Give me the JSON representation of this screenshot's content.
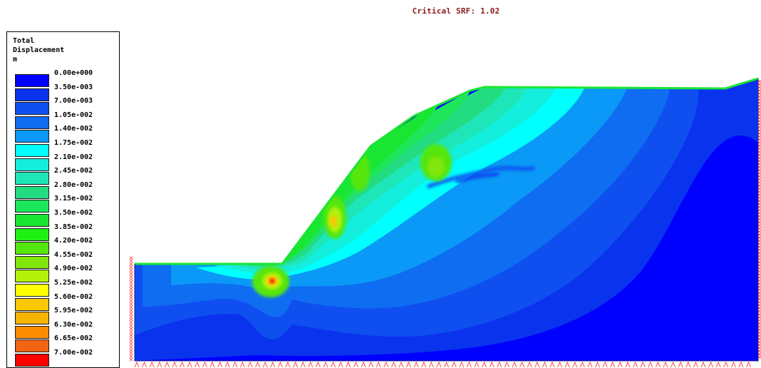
{
  "title": "Critical SRF: 1.02",
  "legend": {
    "heading_line1": "Total",
    "heading_line2": "Displacement",
    "unit": "m",
    "entries": [
      {
        "label": "0.00e+000",
        "color": "#0000ff"
      },
      {
        "label": "3.50e-003",
        "color": "#0a33ee"
      },
      {
        "label": "7.00e-003",
        "color": "#0f4ff0"
      },
      {
        "label": "1.05e-002",
        "color": "#0f6df2"
      },
      {
        "label": "1.40e-002",
        "color": "#0a99f6"
      },
      {
        "label": "1.75e-002",
        "color": "#00ffff"
      },
      {
        "label": "2.10e-002",
        "color": "#14eedc"
      },
      {
        "label": "2.45e-002",
        "color": "#1ee6b8"
      },
      {
        "label": "2.80e-002",
        "color": "#23dc82"
      },
      {
        "label": "3.15e-002",
        "color": "#1ee65a"
      },
      {
        "label": "3.50e-002",
        "color": "#19e632"
      },
      {
        "label": "3.85e-002",
        "color": "#1ef014"
      },
      {
        "label": "4.20e-002",
        "color": "#55e60f"
      },
      {
        "label": "4.55e-002",
        "color": "#82e60a"
      },
      {
        "label": "4.90e-002",
        "color": "#b4f00a"
      },
      {
        "label": "5.25e-002",
        "color": "#ffff00"
      },
      {
        "label": "5.60e-002",
        "color": "#fac800"
      },
      {
        "label": "5.95e-002",
        "color": "#f5b400"
      },
      {
        "label": "6.30e-002",
        "color": "#ff8c00"
      },
      {
        "label": "6.65e-002",
        "color": "#f06414"
      },
      {
        "label": "7.00e-002",
        "color": "#ff0000"
      }
    ]
  }
}
